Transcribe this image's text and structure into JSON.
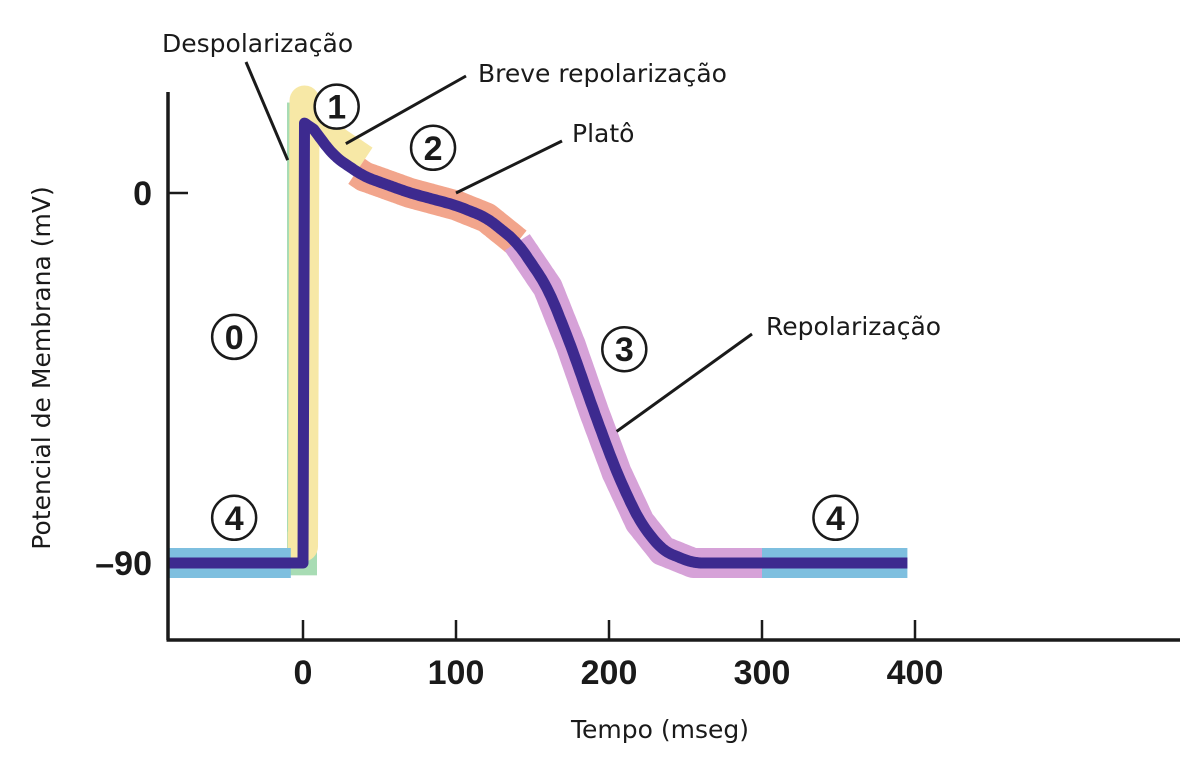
{
  "chart_data": {
    "type": "line",
    "title": "",
    "xlabel": "Tempo (mseg)",
    "ylabel": "Potencial de Membrana (mV)",
    "x_ticks": [
      0,
      100,
      200,
      300,
      400
    ],
    "x_tick_labels": [
      "0",
      "100",
      "200",
      "300",
      "400"
    ],
    "y_ticks": [
      0,
      -90
    ],
    "y_tick_labels": [
      "0",
      "–90"
    ],
    "xlim": [
      -88,
      567
    ],
    "ylim": [
      -109,
      25
    ],
    "grid": false,
    "series": [
      {
        "values": [
          [
            -88,
            -90
          ],
          [
            0,
            -90
          ],
          [
            0,
            19
          ],
          [
            8,
            15
          ],
          [
            20,
            9
          ],
          [
            40,
            4
          ],
          [
            70,
            0
          ],
          [
            100,
            -3
          ],
          [
            120,
            -6
          ],
          [
            140,
            -12
          ],
          [
            160,
            -23
          ],
          [
            175,
            -37
          ],
          [
            190,
            -53
          ],
          [
            205,
            -68
          ],
          [
            220,
            -80
          ],
          [
            235,
            -87
          ],
          [
            255,
            -90
          ],
          [
            300,
            -90
          ],
          [
            395,
            -90
          ]
        ]
      }
    ],
    "phases": [
      {
        "number": "0",
        "x": [
          -10,
          10
        ],
        "color": "#a8dcb4"
      },
      {
        "number": "1",
        "x": [
          -10,
          40
        ],
        "color": "#f7e8a6"
      },
      {
        "number": "2",
        "x": [
          35,
          140
        ],
        "color": "#f2a58c"
      },
      {
        "number": "3",
        "x": [
          140,
          300
        ],
        "color": "#d6a2d8"
      },
      {
        "number": "4",
        "x": [
          -88,
          -8
        ],
        "color": "#7ebfdf"
      },
      {
        "number": "4",
        "x": [
          300,
          395
        ],
        "color": "#7ebfdf"
      }
    ],
    "phase_labels": [
      {
        "text": "0",
        "x": -45,
        "y": -35
      },
      {
        "text": "1",
        "x": 22,
        "y": 21
      },
      {
        "text": "2",
        "x": 85,
        "y": 11
      },
      {
        "text": "3",
        "x": 210,
        "y": -38
      },
      {
        "text": "4",
        "x": -45,
        "y": -79
      },
      {
        "text": "4",
        "x": 348,
        "y": -79
      }
    ],
    "annotations": [
      {
        "text": "Despolarização",
        "point": [
          -10,
          8
        ]
      },
      {
        "text": "Breve repolarização",
        "point": [
          28,
          12
        ]
      },
      {
        "text": "Platô",
        "point": [
          100,
          0
        ]
      },
      {
        "text": "Repolarização",
        "point": [
          205,
          -58
        ]
      }
    ],
    "colors": {
      "curve": "#3d2a8f",
      "axis": "#1a1a1a"
    }
  }
}
